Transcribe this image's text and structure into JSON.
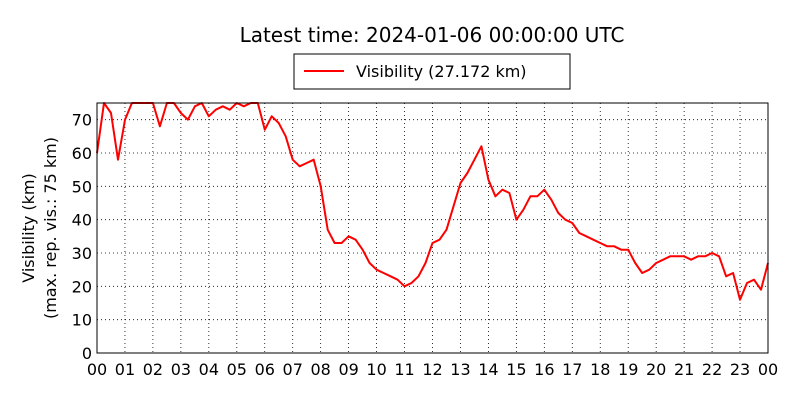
{
  "chart_data": {
    "type": "line",
    "title": "Latest time: 2024-01-06 00:00:00 UTC",
    "y_label": [
      "Visibility (km)",
      "(max. rep. vis.: 75 km)"
    ],
    "legend_position": "top center",
    "grid": true,
    "xlim": [
      0,
      24
    ],
    "ylim": [
      0,
      75
    ],
    "yticks": [
      0,
      10,
      20,
      30,
      40,
      50,
      60,
      70
    ],
    "xticks": [
      {
        "value": 0,
        "label": "00"
      },
      {
        "value": 1,
        "label": "01"
      },
      {
        "value": 2,
        "label": "02"
      },
      {
        "value": 3,
        "label": "03"
      },
      {
        "value": 4,
        "label": "04"
      },
      {
        "value": 5,
        "label": "05"
      },
      {
        "value": 6,
        "label": "06"
      },
      {
        "value": 7,
        "label": "07"
      },
      {
        "value": 8,
        "label": "08"
      },
      {
        "value": 9,
        "label": "09"
      },
      {
        "value": 10,
        "label": "10"
      },
      {
        "value": 11,
        "label": "11"
      },
      {
        "value": 12,
        "label": "12"
      },
      {
        "value": 13,
        "label": "13"
      },
      {
        "value": 14,
        "label": "14"
      },
      {
        "value": 15,
        "label": "15"
      },
      {
        "value": 16,
        "label": "16"
      },
      {
        "value": 17,
        "label": "17"
      },
      {
        "value": 18,
        "label": "18"
      },
      {
        "value": 19,
        "label": "19"
      },
      {
        "value": 20,
        "label": "20"
      },
      {
        "value": 21,
        "label": "21"
      },
      {
        "value": 22,
        "label": "22"
      },
      {
        "value": 23,
        "label": "23"
      },
      {
        "value": 24,
        "label": "00"
      }
    ],
    "x": [
      0,
      0.25,
      0.5,
      0.75,
      1,
      1.25,
      1.5,
      1.75,
      2,
      2.25,
      2.5,
      2.75,
      3,
      3.25,
      3.5,
      3.75,
      4,
      4.25,
      4.5,
      4.75,
      5,
      5.25,
      5.5,
      5.75,
      6,
      6.25,
      6.5,
      6.75,
      7,
      7.25,
      7.5,
      7.75,
      8,
      8.25,
      8.5,
      8.75,
      9,
      9.25,
      9.5,
      9.75,
      10,
      10.25,
      10.5,
      10.75,
      11,
      11.25,
      11.5,
      11.75,
      12,
      12.25,
      12.5,
      12.75,
      13,
      13.25,
      13.5,
      13.75,
      14,
      14.25,
      14.5,
      14.75,
      15,
      15.25,
      15.5,
      15.75,
      16,
      16.25,
      16.5,
      16.75,
      17,
      17.25,
      17.5,
      17.75,
      18,
      18.25,
      18.5,
      18.75,
      19,
      19.25,
      19.5,
      19.75,
      20,
      20.25,
      20.5,
      20.75,
      21,
      21.25,
      21.5,
      21.75,
      22,
      22.25,
      22.5,
      22.75,
      23,
      23.25,
      23.5,
      23.75,
      24
    ],
    "series": [
      {
        "name": "Visibility (27.172 km)",
        "color": "#ff0000",
        "values": [
          60,
          75,
          72,
          58,
          70,
          75,
          75,
          75,
          75,
          68,
          75,
          75,
          72,
          70,
          74,
          75,
          71,
          73,
          74,
          73,
          75,
          74,
          75,
          75,
          67,
          71,
          69,
          65,
          58,
          56,
          57,
          58,
          50,
          37,
          33,
          33,
          35,
          34,
          31,
          27,
          25,
          24,
          23,
          22,
          20,
          21,
          23,
          27,
          33,
          34,
          37,
          44,
          51,
          54,
          58,
          62,
          52,
          47,
          49,
          48,
          40,
          43,
          47,
          47,
          49,
          46,
          42,
          40,
          39,
          36,
          35,
          34,
          33,
          32,
          32,
          31,
          31,
          27,
          24,
          25,
          27,
          28,
          29,
          29,
          29,
          28,
          29,
          29,
          30,
          29,
          23,
          24,
          16,
          21,
          22,
          19,
          27
        ]
      }
    ]
  }
}
